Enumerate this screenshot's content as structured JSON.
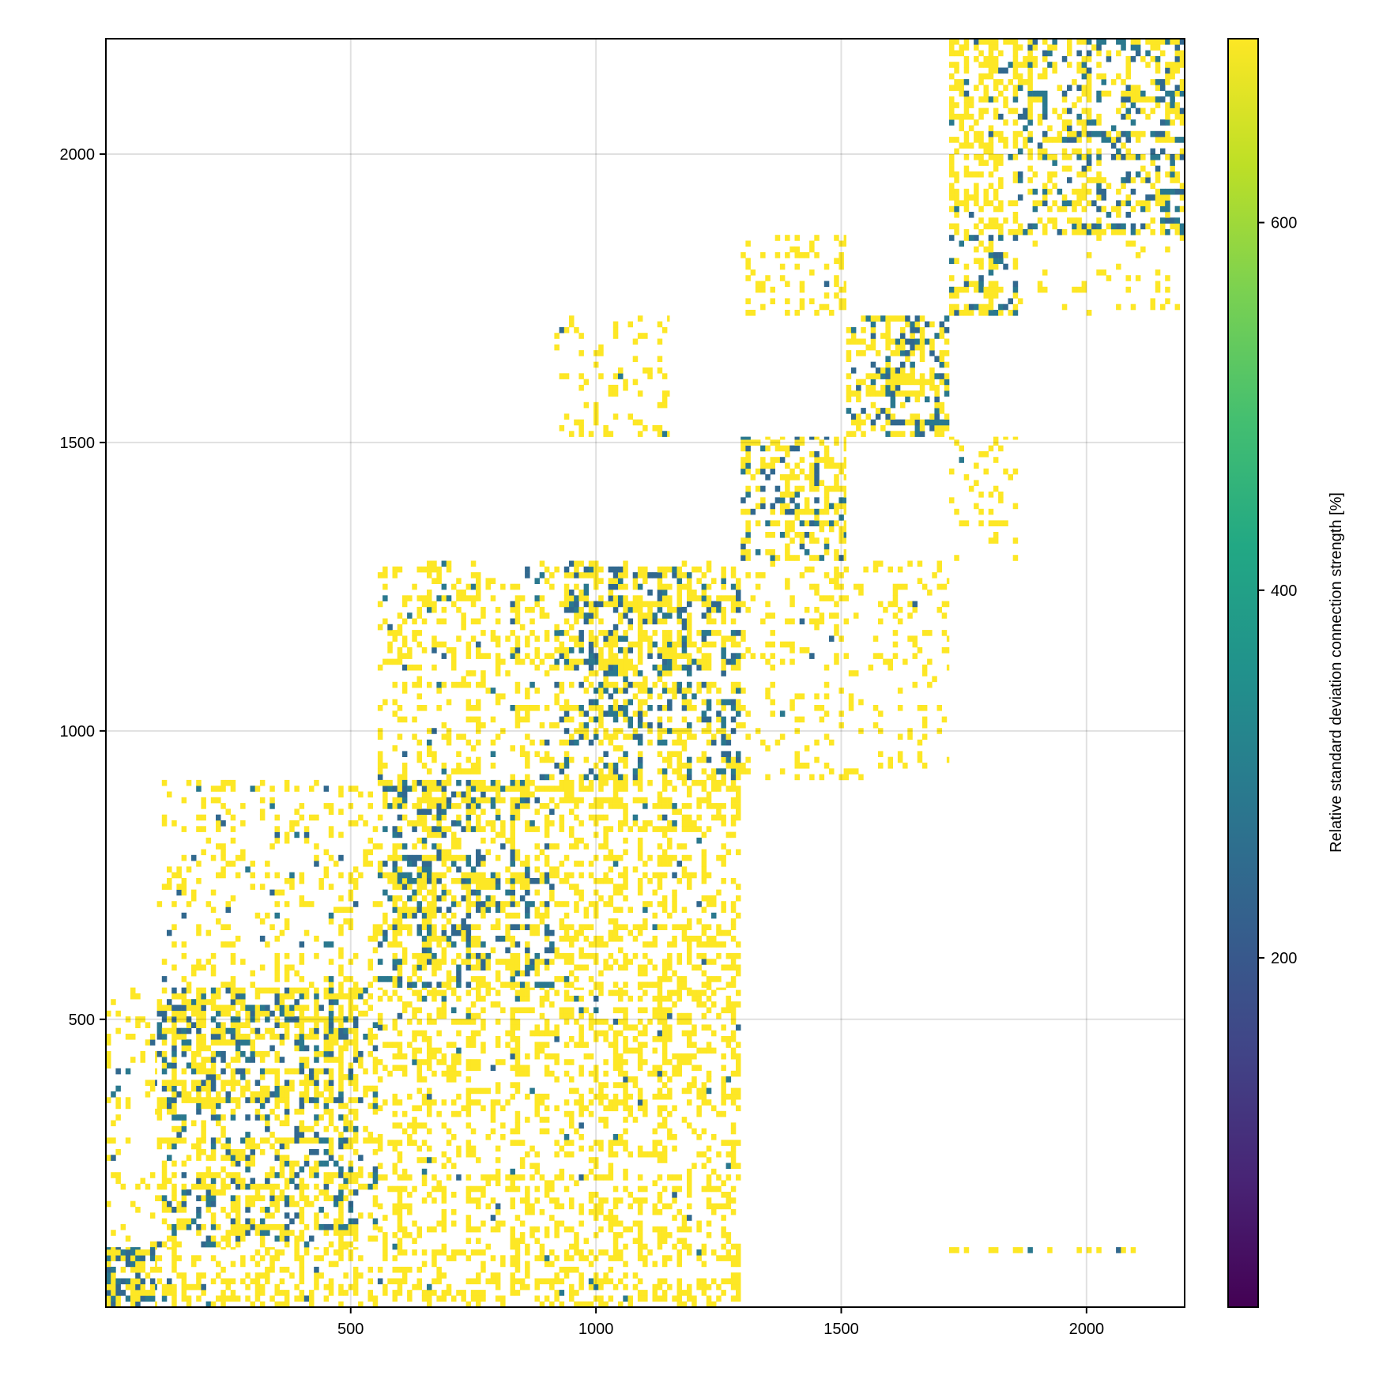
{
  "chart_data": {
    "type": "heatmap",
    "title": "",
    "xlabel": "",
    "ylabel": "",
    "xlim": [
      1,
      2200
    ],
    "ylim": [
      1,
      2200
    ],
    "x_ticks": [
      500,
      1000,
      1500,
      2000
    ],
    "y_ticks": [
      500,
      1000,
      1500,
      2000
    ],
    "grid": true,
    "colormap": "viridis",
    "colorbar": {
      "label": "Relative standard deviation connection strength [%]",
      "range": [
        10,
        700
      ],
      "ticks": [
        200,
        400,
        600
      ],
      "position": "right"
    },
    "diagonal_blocks": [
      {
        "x": [
          1,
          105
        ],
        "y": [
          1,
          105
        ],
        "density": 0.85,
        "high_fraction": 0.55
      },
      {
        "x": [
          105,
          555
        ],
        "y": [
          105,
          555
        ],
        "density": 0.7,
        "high_fraction": 0.7
      },
      {
        "x": [
          555,
          915
        ],
        "y": [
          555,
          915
        ],
        "density": 0.72,
        "high_fraction": 0.65
      },
      {
        "x": [
          915,
          1295
        ],
        "y": [
          915,
          1295
        ],
        "density": 0.62,
        "high_fraction": 0.65
      },
      {
        "x": [
          1295,
          1510
        ],
        "y": [
          1295,
          1510
        ],
        "density": 0.6,
        "high_fraction": 0.72
      },
      {
        "x": [
          1510,
          1720
        ],
        "y": [
          1510,
          1720
        ],
        "density": 0.62,
        "high_fraction": 0.65
      },
      {
        "x": [
          1720,
          1860
        ],
        "y": [
          1720,
          1860
        ],
        "density": 0.7,
        "high_fraction": 0.6
      },
      {
        "x": [
          1860,
          2200
        ],
        "y": [
          1860,
          2200
        ],
        "density": 0.62,
        "high_fraction": 0.62
      }
    ],
    "off_diagonal_blocks": [
      {
        "x": [
          105,
          555
        ],
        "y": [
          1,
          105
        ],
        "density": 0.45,
        "high_fraction": 0.95
      },
      {
        "x": [
          1,
          105
        ],
        "y": [
          105,
          555
        ],
        "density": 0.15,
        "high_fraction": 0.9
      },
      {
        "x": [
          555,
          1295
        ],
        "y": [
          1,
          555
        ],
        "density": 0.45,
        "high_fraction": 0.97
      },
      {
        "x": [
          105,
          555
        ],
        "y": [
          555,
          915
        ],
        "density": 0.25,
        "high_fraction": 0.9
      },
      {
        "x": [
          555,
          915
        ],
        "y": [
          915,
          1295
        ],
        "density": 0.35,
        "high_fraction": 0.92
      },
      {
        "x": [
          915,
          1295
        ],
        "y": [
          555,
          915
        ],
        "density": 0.5,
        "high_fraction": 0.97
      },
      {
        "x": [
          915,
          1150
        ],
        "y": [
          1510,
          1720
        ],
        "density": 0.2,
        "high_fraction": 0.97
      },
      {
        "x": [
          1295,
          1720
        ],
        "y": [
          915,
          1295
        ],
        "density": 0.18,
        "high_fraction": 0.98
      },
      {
        "x": [
          1295,
          1510
        ],
        "y": [
          1720,
          1860
        ],
        "density": 0.35,
        "high_fraction": 0.98
      },
      {
        "x": [
          1720,
          1860
        ],
        "y": [
          1295,
          1510
        ],
        "density": 0.18,
        "high_fraction": 0.98
      },
      {
        "x": [
          1720,
          1860
        ],
        "y": [
          1860,
          2200
        ],
        "density": 0.6,
        "high_fraction": 0.95
      },
      {
        "x": [
          1860,
          2200
        ],
        "y": [
          1720,
          1860
        ],
        "density": 0.12,
        "high_fraction": 0.98
      },
      {
        "x": [
          1720,
          2100
        ],
        "y": [
          95,
          105
        ],
        "density": 0.5,
        "high_fraction": 0.6
      }
    ]
  }
}
